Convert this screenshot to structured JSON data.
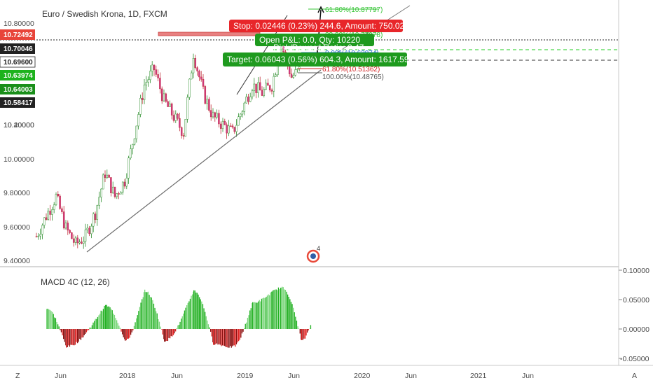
{
  "header": {
    "symbol_title": "Euro / Swedish Krona, 1D, FXCM"
  },
  "price_axis": {
    "ticks": [
      "10.80000",
      "10.40000",
      "10.20000",
      "10.00000",
      "9.80000",
      "9.60000",
      "9.40000"
    ],
    "tags": [
      {
        "label": "10.72492",
        "color": "#e8443a"
      },
      {
        "label": "10.70046",
        "color": "#222222"
      },
      {
        "label": "10.69600",
        "color": "#ffffff"
      },
      {
        "label": "10.63974",
        "color": "#1db21d"
      },
      {
        "label": "10.64003",
        "color": "#1a8f1a"
      },
      {
        "label": "10.58417",
        "color": "#222222"
      }
    ]
  },
  "macd_axis": {
    "ticks": [
      "0.10000",
      "0.05000",
      "0.00000",
      "-0.05000"
    ]
  },
  "time_axis": {
    "labels": [
      "Jun",
      "2018",
      "Jun",
      "2019",
      "Jun",
      "2020",
      "Jun",
      "2021",
      "Jun"
    ]
  },
  "bottom_bar": {
    "z_label": "Z",
    "a_label": "A"
  },
  "macd_panel": {
    "title": "MACD 4C (12, 26)"
  },
  "position_tool": {
    "stop_label": "Stop: 0.02446 (0.23%) 244.6, Amount: 750.02",
    "open_label": "Open P&L: 0.0, Qty: 10220",
    "ratio_label": "Risk/Reward Ratio: 2.47",
    "target_label": "Target: 0.06043 (0.56%) 604.3, Amount: 1617.59",
    "stop_color": "#e8262a",
    "target_color": "#1e9a1e"
  },
  "fib_levels": [
    {
      "label": "61.80%(10.87797)",
      "color": "#36c436"
    },
    {
      "label": "38.20%(10.77978)",
      "color": "#36c436"
    },
    {
      "label": "0.00%(10.63974)",
      "color": "#2a6fdb"
    },
    {
      "label": "61.80%(10.51362)",
      "color": "#d02020"
    },
    {
      "label": "100.00%(10.48765)",
      "color": "#555555"
    }
  ],
  "chart_data": {
    "type": "candlestick",
    "title": "Euro / Swedish Krona, 1D, FXCM",
    "ylim": [
      9.4,
      10.9
    ],
    "x_range": [
      "2017-04",
      "2021-09"
    ],
    "price_path": [
      {
        "x": "2017-04",
        "close": 9.55
      },
      {
        "x": "2017-05",
        "close": 9.68
      },
      {
        "x": "2017-06",
        "close": 9.8
      },
      {
        "x": "2017-07",
        "close": 9.6
      },
      {
        "x": "2017-08",
        "close": 9.5
      },
      {
        "x": "2017-09",
        "close": 9.55
      },
      {
        "x": "2017-10",
        "close": 9.7
      },
      {
        "x": "2017-11",
        "close": 9.95
      },
      {
        "x": "2017-12",
        "close": 9.8
      },
      {
        "x": "2018-01",
        "close": 9.9
      },
      {
        "x": "2018-02",
        "close": 10.2
      },
      {
        "x": "2018-03",
        "close": 10.5
      },
      {
        "x": "2018-04",
        "close": 10.6
      },
      {
        "x": "2018-05",
        "close": 10.4
      },
      {
        "x": "2018-06",
        "close": 10.3
      },
      {
        "x": "2018-07",
        "close": 10.2
      },
      {
        "x": "2018-08",
        "close": 10.7
      },
      {
        "x": "2018-09",
        "close": 10.45
      },
      {
        "x": "2018-10",
        "close": 10.3
      },
      {
        "x": "2018-11",
        "close": 10.25
      },
      {
        "x": "2018-12",
        "close": 10.2
      },
      {
        "x": "2019-01",
        "close": 10.35
      },
      {
        "x": "2019-02",
        "close": 10.5
      },
      {
        "x": "2019-03",
        "close": 10.45
      },
      {
        "x": "2019-04",
        "close": 10.5
      },
      {
        "x": "2019-05",
        "close": 10.75
      },
      {
        "x": "2019-06",
        "close": 10.55
      },
      {
        "x": "2019-07",
        "close": 10.6
      }
    ],
    "macd": [
      {
        "x": "2017-05",
        "value": 0.035
      },
      {
        "x": "2017-07",
        "value": -0.03
      },
      {
        "x": "2017-11",
        "value": 0.04
      },
      {
        "x": "2018-01",
        "value": -0.02
      },
      {
        "x": "2018-03",
        "value": 0.065
      },
      {
        "x": "2018-05",
        "value": -0.02
      },
      {
        "x": "2018-08",
        "value": 0.065
      },
      {
        "x": "2018-10",
        "value": -0.025
      },
      {
        "x": "2018-12",
        "value": -0.03
      },
      {
        "x": "2019-02",
        "value": 0.045
      },
      {
        "x": "2019-05",
        "value": 0.07
      },
      {
        "x": "2019-07",
        "value": -0.02
      },
      {
        "x": "2019-08",
        "value": 0.01
      }
    ],
    "macd_ylim": [
      -0.055,
      0.105
    ],
    "legend": "none",
    "grid": false
  }
}
